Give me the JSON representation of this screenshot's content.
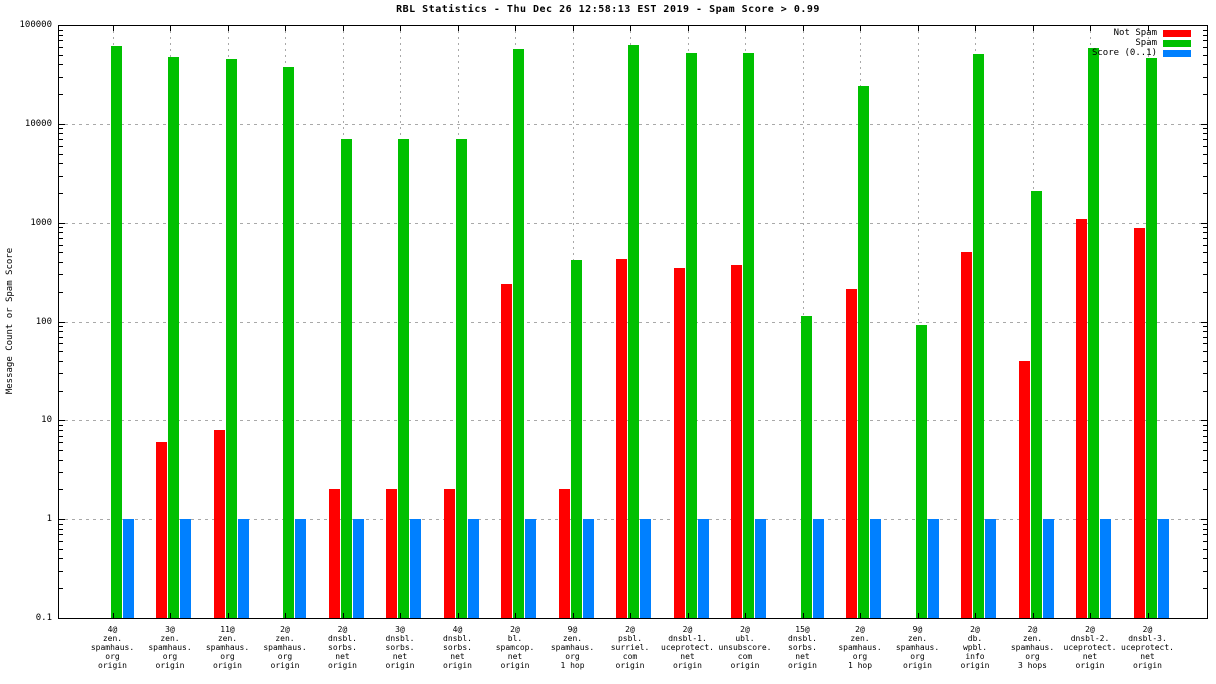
{
  "title": "RBL Statistics - Thu Dec 26 12:58:13 EST 2019 - Spam Score > 0.99",
  "chart_data": {
    "type": "bar",
    "title": "RBL Statistics - Thu Dec 26 12:58:13 EST 2019 - Spam Score > 0.99",
    "xlabel": "",
    "ylabel": "Message Count or Spam Score",
    "y_scale": "log",
    "ylim": [
      0.1,
      100000
    ],
    "y_tick_labels": [
      "100000",
      "10000",
      "1000",
      "100",
      "10",
      "1",
      "0.1"
    ],
    "grid": true,
    "legend_position": "top-right-inside",
    "categories": [
      [
        "4@",
        "zen.",
        "spamhaus.",
        "org",
        "origin"
      ],
      [
        "3@",
        "zen.",
        "spamhaus.",
        "org",
        "origin"
      ],
      [
        "11@",
        "zen.",
        "spamhaus.",
        "org",
        "origin"
      ],
      [
        "2@",
        "zen.",
        "spamhaus.",
        "org",
        "origin"
      ],
      [
        "2@",
        "dnsbl.",
        "sorbs.",
        "net",
        "origin"
      ],
      [
        "3@",
        "dnsbl.",
        "sorbs.",
        "net",
        "origin"
      ],
      [
        "4@",
        "dnsbl.",
        "sorbs.",
        "net",
        "origin"
      ],
      [
        "2@",
        "bl.",
        "spamcop.",
        "net",
        "origin"
      ],
      [
        "9@",
        "zen.",
        "spamhaus.",
        "org",
        "1 hop"
      ],
      [
        "2@",
        "psbl.",
        "surriel.",
        "com",
        "origin"
      ],
      [
        "2@",
        "dnsbl-1.",
        "uceprotect.",
        "net",
        "origin"
      ],
      [
        "2@",
        "ubl.",
        "unsubscore.",
        "com",
        "origin"
      ],
      [
        "15@",
        "dnsbl.",
        "sorbs.",
        "net",
        "origin"
      ],
      [
        "2@",
        "zen.",
        "spamhaus.",
        "org",
        "1 hop"
      ],
      [
        "9@",
        "zen.",
        "spamhaus.",
        "org",
        "origin"
      ],
      [
        "2@",
        "db.",
        "wpbl.",
        "info",
        "origin"
      ],
      [
        "2@",
        "zen.",
        "spamhaus.",
        "org",
        "3 hops"
      ],
      [
        "2@",
        "dnsbl-2.",
        "uceprotect.",
        "net",
        "origin"
      ],
      [
        "2@",
        "dnsbl-3.",
        "uceprotect.",
        "net",
        "origin"
      ]
    ],
    "series": [
      {
        "name": "Not Spam",
        "color": "#ff0000",
        "values": [
          null,
          6,
          8,
          null,
          2,
          2,
          2,
          240,
          2,
          430,
          350,
          370,
          null,
          215,
          null,
          500,
          40,
          1100,
          880
        ]
      },
      {
        "name": "Spam",
        "color": "#00c000",
        "values": [
          62000,
          47000,
          45000,
          38000,
          7000,
          7000,
          7000,
          57000,
          420,
          63000,
          52000,
          52000,
          115,
          24000,
          93,
          51000,
          2100,
          59000,
          46000
        ]
      },
      {
        "name": "Score (0..1)",
        "color": "#0080ff",
        "values": [
          1,
          1,
          1,
          1,
          1,
          1,
          1,
          1,
          1,
          1,
          1,
          1,
          1,
          1,
          1,
          1,
          1,
          1,
          1
        ]
      }
    ]
  },
  "colors": {
    "background": "#ffffff",
    "border": "#000000",
    "grid": "#a9a9a9",
    "not_spam": "#ff0000",
    "spam": "#00c000",
    "score": "#0080ff"
  }
}
